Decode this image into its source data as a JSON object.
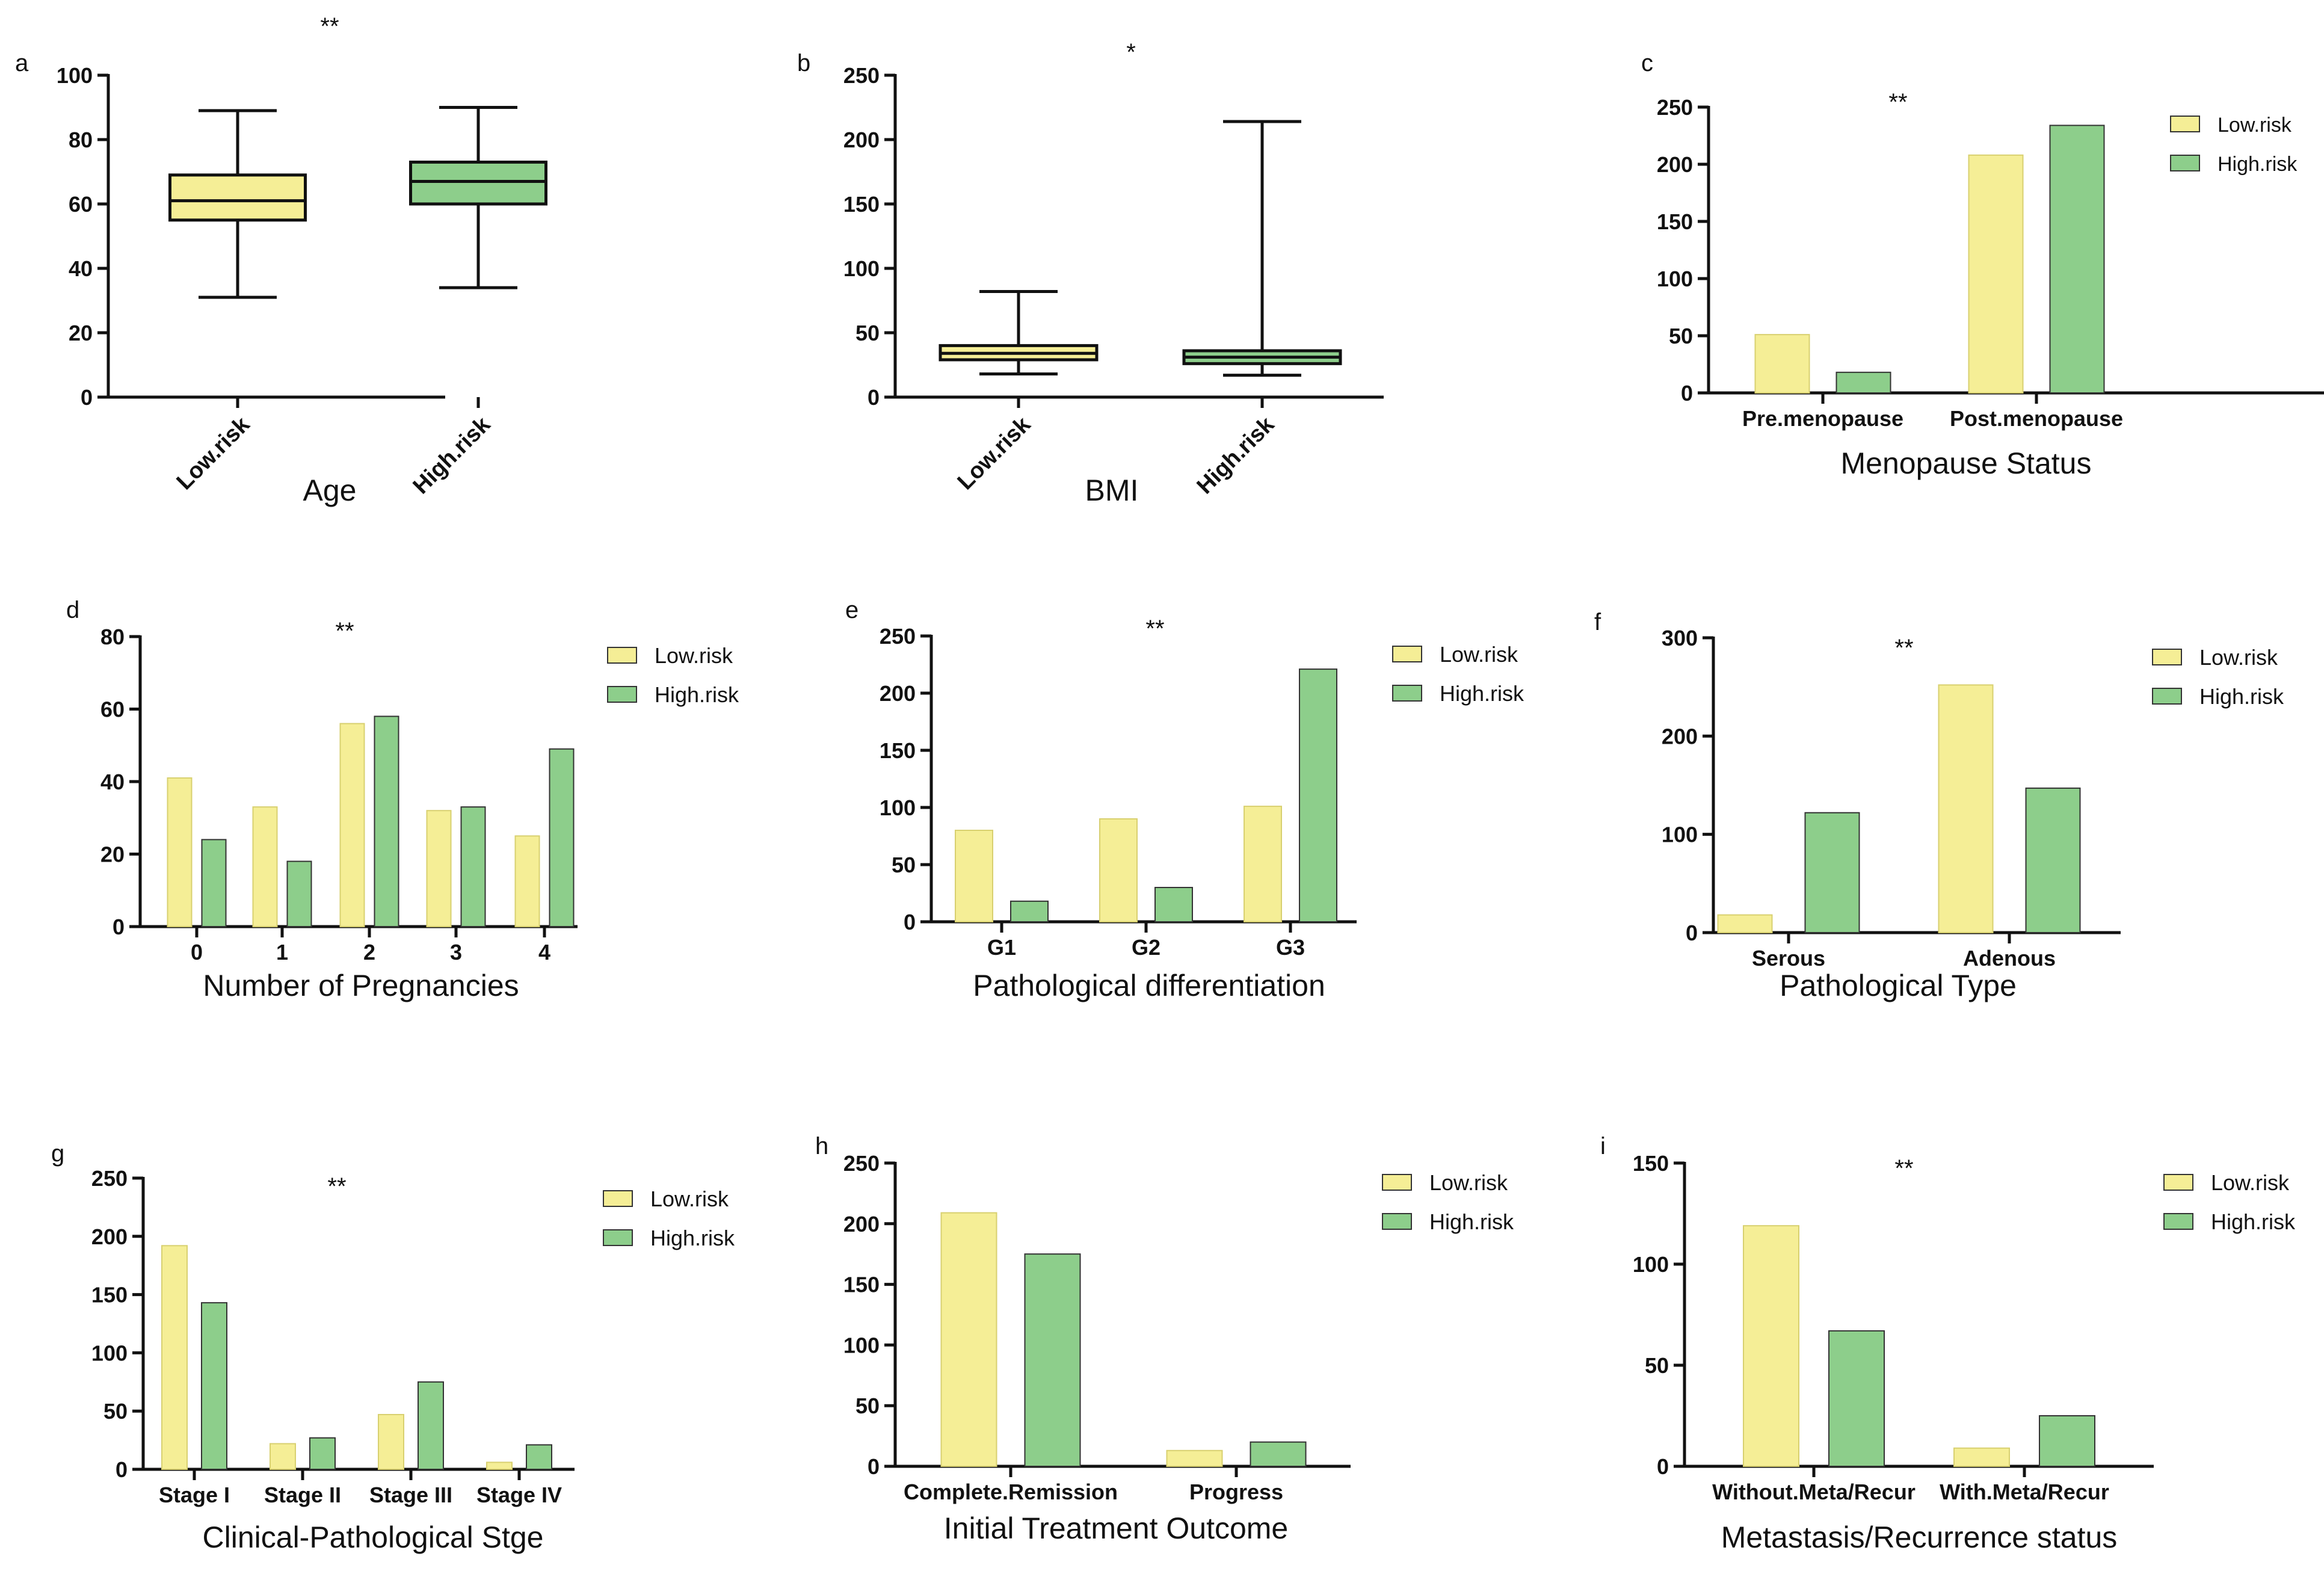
{
  "colors": {
    "low": "#f5ee96",
    "high": "#8dce8b",
    "axis": "#111111"
  },
  "chart_data": [
    {
      "panel": "a",
      "type": "box",
      "xlabel": "Age",
      "significance": "**",
      "categories": [
        "Low.risk",
        "High.risk"
      ],
      "boxes": [
        {
          "name": "Low.risk",
          "min": 31,
          "q1": 55,
          "median": 61,
          "q3": 69,
          "max": 89
        },
        {
          "name": "High.risk",
          "min": 34,
          "q1": 60,
          "median": 67,
          "q3": 73,
          "max": 90
        }
      ],
      "ylim": [
        0,
        100
      ],
      "yticks": [
        0,
        20,
        40,
        60,
        80,
        100
      ]
    },
    {
      "panel": "b",
      "type": "box",
      "xlabel": "BMI",
      "significance": "*",
      "categories": [
        "Low.risk",
        "High.risk"
      ],
      "boxes": [
        {
          "name": "Low.risk",
          "min": 18,
          "q1": 29,
          "median": 34,
          "q3": 40,
          "max": 82
        },
        {
          "name": "High.risk",
          "min": 17,
          "q1": 26,
          "median": 31,
          "q3": 36,
          "max": 214
        }
      ],
      "ylim": [
        0,
        250
      ],
      "yticks": [
        0,
        50,
        100,
        150,
        200,
        250
      ]
    },
    {
      "panel": "c",
      "type": "bar",
      "xlabel": "Menopause Status",
      "significance": "**",
      "categories": [
        "Pre.menopause",
        "Post.menopause"
      ],
      "series": [
        {
          "name": "Low.risk",
          "values": [
            51,
            208
          ]
        },
        {
          "name": "High.risk",
          "values": [
            18,
            234
          ]
        }
      ],
      "ylim": [
        0,
        250
      ],
      "yticks": [
        0,
        50,
        100,
        150,
        200,
        250
      ]
    },
    {
      "panel": "d",
      "type": "bar",
      "xlabel": "Number of Pregnancies",
      "significance": "**",
      "categories": [
        "0",
        "1",
        "2",
        "3",
        "4"
      ],
      "series": [
        {
          "name": "Low.risk",
          "values": [
            41,
            33,
            56,
            32,
            25
          ]
        },
        {
          "name": "High.risk",
          "values": [
            24,
            18,
            58,
            33,
            49
          ]
        }
      ],
      "ylim": [
        0,
        80
      ],
      "yticks": [
        0,
        20,
        40,
        60,
        80
      ]
    },
    {
      "panel": "e",
      "type": "bar",
      "xlabel": "Pathological differentiation",
      "significance": "**",
      "categories": [
        "G1",
        "G2",
        "G3"
      ],
      "series": [
        {
          "name": "Low.risk",
          "values": [
            80,
            90,
            101
          ]
        },
        {
          "name": "High.risk",
          "values": [
            18,
            30,
            221
          ]
        }
      ],
      "ylim": [
        0,
        250
      ],
      "yticks": [
        0,
        50,
        100,
        150,
        200,
        250
      ]
    },
    {
      "panel": "f",
      "type": "bar",
      "xlabel": "Pathological Type",
      "significance": "**",
      "categories": [
        "Serous",
        "Adenous"
      ],
      "series": [
        {
          "name": "Low.risk",
          "values": [
            18,
            252
          ]
        },
        {
          "name": "High.risk",
          "values": [
            122,
            147
          ]
        }
      ],
      "ylim": [
        0,
        300
      ],
      "yticks": [
        0,
        100,
        200,
        300
      ]
    },
    {
      "panel": "g",
      "type": "bar",
      "xlabel": "Clinical-Pathological Stge",
      "significance": "**",
      "categories": [
        "Stage I",
        "Stage II",
        "Stage III",
        "Stage IV"
      ],
      "series": [
        {
          "name": "Low.risk",
          "values": [
            192,
            22,
            47,
            6
          ]
        },
        {
          "name": "High.risk",
          "values": [
            143,
            27,
            75,
            21
          ]
        }
      ],
      "ylim": [
        0,
        250
      ],
      "yticks": [
        0,
        50,
        100,
        150,
        200,
        250
      ]
    },
    {
      "panel": "h",
      "type": "bar",
      "xlabel": "Initial Treatment Outcome",
      "significance": "",
      "categories": [
        "Complete.Remission",
        "Progress"
      ],
      "series": [
        {
          "name": "Low.risk",
          "values": [
            209,
            13
          ]
        },
        {
          "name": "High.risk",
          "values": [
            175,
            20
          ]
        }
      ],
      "ylim": [
        0,
        250
      ],
      "yticks": [
        0,
        50,
        100,
        150,
        200,
        250
      ]
    },
    {
      "panel": "i",
      "type": "bar",
      "xlabel": "Metastasis/Recurrence status",
      "significance": "**",
      "categories": [
        "Without.Meta/Recur",
        "With.Meta/Recur"
      ],
      "series": [
        {
          "name": "Low.risk",
          "values": [
            119,
            9
          ]
        },
        {
          "name": "High.risk",
          "values": [
            67,
            25
          ]
        }
      ],
      "ylim": [
        0,
        150
      ],
      "yticks": [
        0,
        50,
        100,
        150
      ]
    }
  ]
}
